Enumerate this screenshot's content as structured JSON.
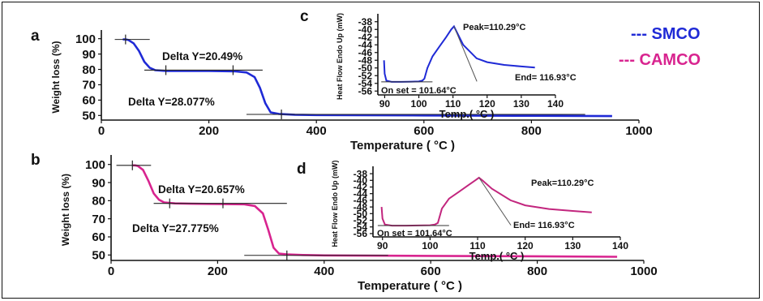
{
  "legend": [
    {
      "label": "--- SMCO",
      "color": "#1f2ad6"
    },
    {
      "label": "--- CAMCO",
      "color": "#d8248f"
    }
  ],
  "chart_data": [
    {
      "panel": "a",
      "type": "line",
      "xlabel": "Temperature ( °C )",
      "ylabel": "Weight loss (%)",
      "xlim": [
        0,
        1000
      ],
      "ylim": [
        47,
        103
      ],
      "xticks": [
        0,
        200,
        400,
        600,
        800,
        1000
      ],
      "yticks": [
        50,
        60,
        70,
        80,
        90,
        100
      ],
      "color": "#1f2ad6",
      "series": [
        {
          "x": [
            40,
            45,
            50,
            60,
            70,
            80,
            90,
            100,
            120,
            150,
            200,
            250,
            270,
            285,
            295,
            305,
            315,
            330,
            360,
            400,
            600,
            800,
            950
          ],
          "y": [
            99.5,
            99.5,
            99.2,
            97,
            92,
            85,
            81,
            79.5,
            79,
            79,
            79,
            78.7,
            78,
            75,
            68,
            58,
            52,
            51,
            50.5,
            50.3,
            50,
            49.8,
            49.6
          ]
        }
      ],
      "annotations": [
        "Delta Y=20.49%",
        "Delta Y=28.077%"
      ]
    },
    {
      "panel": "b",
      "type": "line",
      "xlabel": "Temperature ( °C )",
      "ylabel": "Weight loss (%)",
      "xlim": [
        0,
        1000
      ],
      "ylim": [
        47,
        103
      ],
      "xticks": [
        0,
        200,
        400,
        600,
        800,
        1000
      ],
      "yticks": [
        50,
        60,
        70,
        80,
        90,
        100
      ],
      "color": "#d8248f",
      "series": [
        {
          "x": [
            40,
            45,
            50,
            60,
            70,
            80,
            90,
            100,
            120,
            150,
            200,
            250,
            270,
            285,
            295,
            305,
            315,
            330,
            360,
            400,
            600,
            800,
            950
          ],
          "y": [
            99.5,
            99.5,
            99.2,
            97,
            91,
            84,
            80.5,
            79,
            78.5,
            78.3,
            78.2,
            78,
            77,
            73,
            64,
            54,
            50.8,
            50.3,
            50,
            49.8,
            49.5,
            49.3,
            49
          ]
        }
      ],
      "annotations": [
        "Delta Y=20.657%",
        "Delta Y=27.775%"
      ]
    },
    {
      "panel": "c",
      "type": "line",
      "xlabel": "Temp.( °C )",
      "ylabel": "Heat Flow Endo Up (mW)",
      "xlim": [
        88,
        140
      ],
      "ylim": [
        -57,
        -37
      ],
      "xticks": [
        90,
        100,
        110,
        120,
        130,
        140
      ],
      "yticks": [
        -38,
        -40,
        -42,
        -44,
        -46,
        -48,
        -50,
        -52,
        -54,
        -56
      ],
      "color": "#1f2ad6",
      "series": [
        {
          "x": [
            89.8,
            90,
            90.5,
            92,
            95,
            100,
            101,
            101.64,
            102.5,
            104,
            106,
            108,
            109.5,
            110.29,
            111,
            113,
            116.93,
            120,
            125,
            130,
            134
          ],
          "y": [
            -48,
            -51.5,
            -53.3,
            -53.6,
            -53.6,
            -53.5,
            -53.3,
            -52.8,
            -50,
            -47,
            -44.5,
            -42,
            -40,
            -39.2,
            -40.5,
            -44,
            -47.5,
            -48.5,
            -49.2,
            -49.6,
            -49.9
          ]
        }
      ],
      "annotations": [
        "Peak=110.29°C",
        "End= 116.93°C",
        "On set = 101.64°C"
      ]
    },
    {
      "panel": "d",
      "type": "line",
      "xlabel": "Temp.( °C )",
      "ylabel": "Heat Flow Endo Up (mW)",
      "xlim": [
        88,
        140
      ],
      "ylim": [
        -57,
        -37
      ],
      "xticks": [
        90,
        100,
        110,
        120,
        130,
        140
      ],
      "yticks": [
        -38,
        -40,
        -42,
        -44,
        -46,
        -48,
        -50,
        -52,
        -54,
        -56
      ],
      "color": "#c2267e",
      "series": [
        {
          "x": [
            89.8,
            90,
            90.5,
            92,
            95,
            100,
            101,
            101.64,
            102.5,
            104,
            106,
            108,
            109.5,
            110.29,
            111,
            113,
            116.93,
            120,
            125,
            130,
            134
          ],
          "y": [
            -48,
            -51.5,
            -53.3,
            -53.6,
            -53.6,
            -53.5,
            -53.3,
            -52.8,
            -48.5,
            -45.5,
            -43.5,
            -41.5,
            -40,
            -39.2,
            -40,
            -42.5,
            -46,
            -47.5,
            -48.6,
            -49.2,
            -49.6
          ]
        }
      ],
      "annotations": [
        "Peak=110.29°C",
        "End= 116.93°C",
        "On set = 101.64°C"
      ]
    }
  ]
}
